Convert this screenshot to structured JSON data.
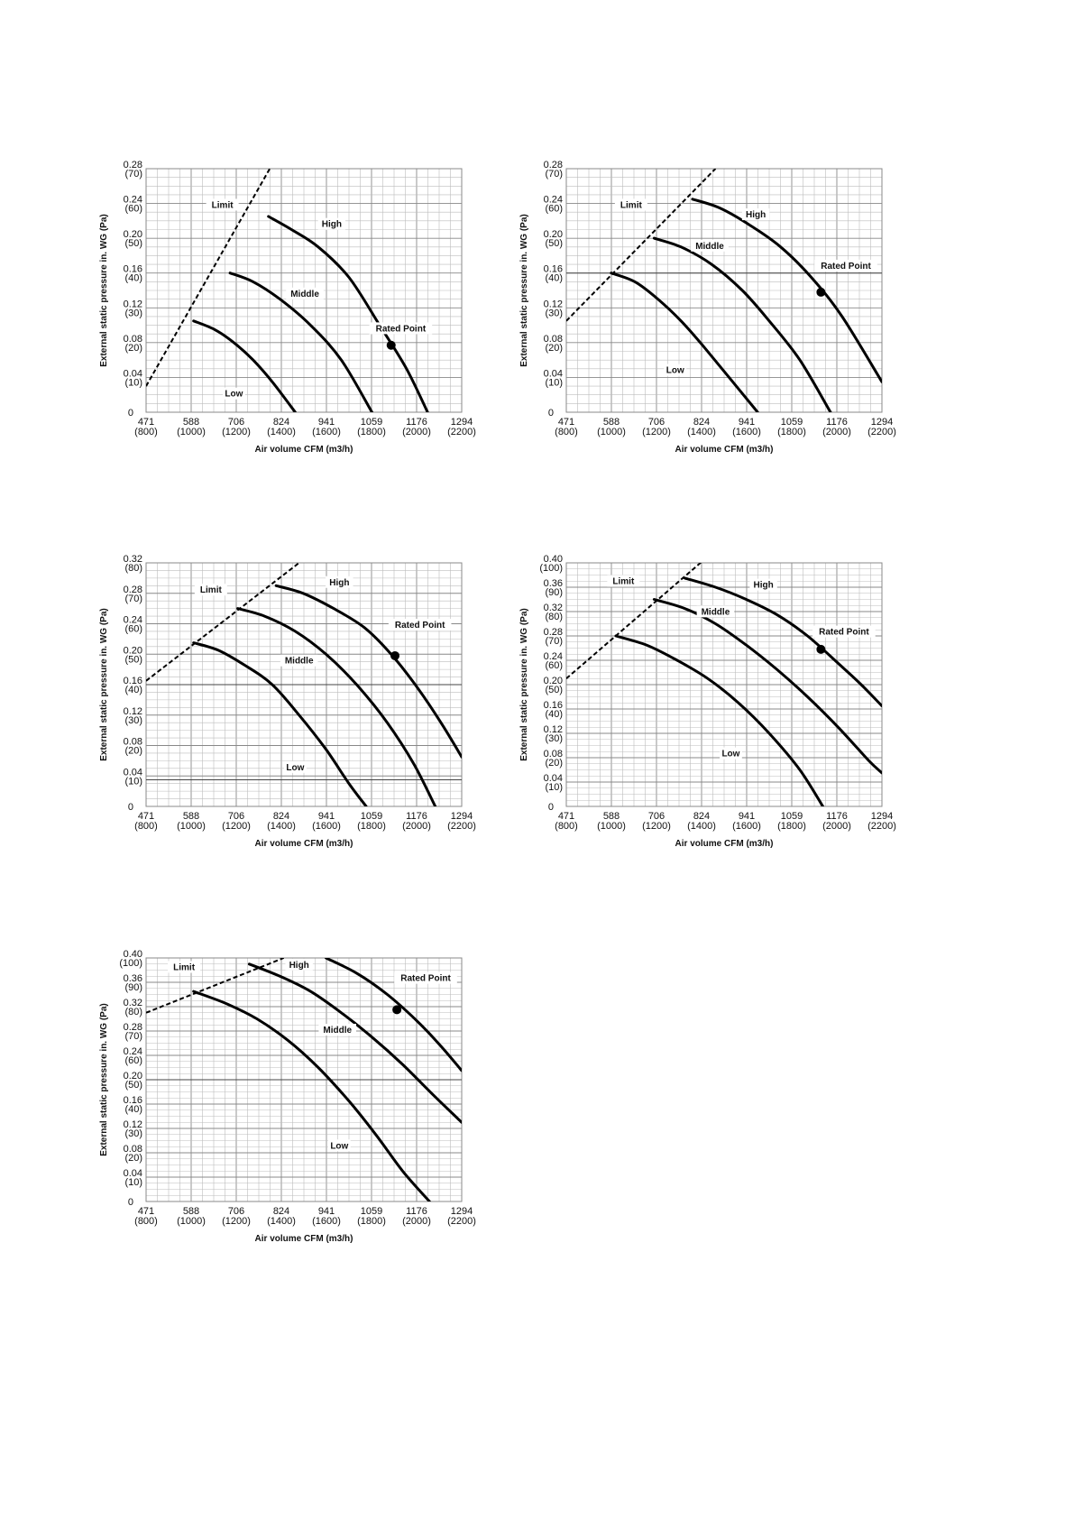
{
  "chart_data": [
    {
      "type": "line",
      "xlabel": "Air volume CFM (m3/h)",
      "ylabel": "External static pressure in. WG (Pa)",
      "xlim": [
        471,
        1294
      ],
      "ylim": [
        0,
        0.28
      ],
      "x_ticks": [
        "471",
        "588",
        "706",
        "824",
        "941",
        "1059",
        "1176",
        "1294"
      ],
      "x_ticks_sub": [
        "(800)",
        "(1000)",
        "(1200)",
        "(1400)",
        "(1600)",
        "(1800)",
        "(2000)",
        "(2200)"
      ],
      "y_ticks": [
        "0",
        "0.04",
        "0.08",
        "0.12",
        "0.16",
        "0.20",
        "0.24",
        "0.28"
      ],
      "y_ticks_sub": [
        "",
        "(10)",
        "(20)",
        "(30)",
        "(40)",
        "(50)",
        "(60)",
        "(70)"
      ],
      "series": [
        {
          "name": "Low",
          "kind": "curve",
          "x": [
            595,
            650,
            700,
            750,
            800,
            860
          ],
          "y": [
            0.105,
            0.095,
            0.08,
            0.06,
            0.035,
            0.0
          ]
        },
        {
          "name": "Middle",
          "kind": "curve",
          "x": [
            690,
            750,
            820,
            900,
            980,
            1060
          ],
          "y": [
            0.16,
            0.15,
            0.13,
            0.1,
            0.06,
            0.0
          ]
        },
        {
          "name": "High",
          "kind": "curve",
          "x": [
            790,
            850,
            920,
            1000,
            1080,
            1150,
            1205
          ],
          "y": [
            0.225,
            0.21,
            0.19,
            0.155,
            0.1,
            0.05,
            0.0
          ]
        },
        {
          "name": "Limit",
          "kind": "dashed",
          "x": [
            471,
            800
          ],
          "y": [
            0.03,
            0.285
          ]
        }
      ],
      "labels": [
        {
          "text": "Limit",
          "x": 670,
          "y": 0.237
        },
        {
          "text": "High",
          "x": 955,
          "y": 0.215
        },
        {
          "text": "Middle",
          "x": 885,
          "y": 0.135
        },
        {
          "text": "Rated Point",
          "x": 1135,
          "y": 0.095
        },
        {
          "text": "Low",
          "x": 700,
          "y": 0.02
        }
      ],
      "rated_point": {
        "x": 1110,
        "y": 0.077
      }
    },
    {
      "type": "line",
      "xlabel": "Air volume CFM (m3/h)",
      "ylabel": "External static pressure in. WG (Pa)",
      "xlim": [
        471,
        1294
      ],
      "ylim": [
        0,
        0.28
      ],
      "x_ticks": [
        "471",
        "588",
        "706",
        "824",
        "941",
        "1059",
        "1176",
        "1294"
      ],
      "x_ticks_sub": [
        "(800)",
        "(1000)",
        "(1200)",
        "(1400)",
        "(1600)",
        "(1800)",
        "(2000)",
        "(2200)"
      ],
      "y_ticks": [
        "0",
        "0.04",
        "0.08",
        "0.12",
        "0.16",
        "0.20",
        "0.24",
        "0.28"
      ],
      "y_ticks_sub": [
        "",
        "(10)",
        "(20)",
        "(30)",
        "(40)",
        "(50)",
        "(60)",
        "(70)"
      ],
      "series": [
        {
          "name": "Low",
          "kind": "curve",
          "x": [
            588,
            650,
            710,
            770,
            830,
            970
          ],
          "y": [
            0.16,
            0.15,
            0.13,
            0.105,
            0.075,
            0.0
          ]
        },
        {
          "name": "Middle",
          "kind": "curve",
          "x": [
            700,
            770,
            850,
            930,
            1000,
            1080,
            1160
          ],
          "y": [
            0.2,
            0.19,
            0.17,
            0.14,
            0.105,
            0.06,
            0.0
          ]
        },
        {
          "name": "High",
          "kind": "curve",
          "x": [
            800,
            870,
            950,
            1030,
            1110,
            1190,
            1294
          ],
          "y": [
            0.245,
            0.235,
            0.215,
            0.19,
            0.155,
            0.11,
            0.035
          ]
        },
        {
          "name": "Limit",
          "kind": "dashed",
          "x": [
            471,
            860
          ],
          "y": [
            0.105,
            0.28
          ]
        }
      ],
      "hlines": [
        0.16
      ],
      "labels": [
        {
          "text": "Limit",
          "x": 640,
          "y": 0.237
        },
        {
          "text": "High",
          "x": 965,
          "y": 0.226
        },
        {
          "text": "Middle",
          "x": 845,
          "y": 0.19
        },
        {
          "text": "Rated Point",
          "x": 1200,
          "y": 0.167
        },
        {
          "text": "Low",
          "x": 755,
          "y": 0.047
        }
      ],
      "rated_point": {
        "x": 1135,
        "y": 0.138
      }
    },
    {
      "type": "line",
      "xlabel": "Air volume CFM (m3/h)",
      "ylabel": "External static pressure in. WG (Pa)",
      "xlim": [
        471,
        1294
      ],
      "ylim": [
        0,
        0.32
      ],
      "x_ticks": [
        "471",
        "588",
        "706",
        "824",
        "941",
        "1059",
        "1176",
        "1294"
      ],
      "x_ticks_sub": [
        "(800)",
        "(1000)",
        "(1200)",
        "(1400)",
        "(1600)",
        "(1800)",
        "(2000)",
        "(2200)"
      ],
      "y_ticks": [
        "0",
        "0.04",
        "0.08",
        "0.12",
        "0.16",
        "0.20",
        "0.24",
        "0.28",
        "0.32"
      ],
      "y_ticks_sub": [
        "",
        "(10)",
        "(20)",
        "(30)",
        "(40)",
        "(50)",
        "(60)",
        "(70)",
        "(80)"
      ],
      "series": [
        {
          "name": "Low",
          "kind": "curve",
          "x": [
            595,
            660,
            730,
            800,
            870,
            940,
            1000,
            1045
          ],
          "y": [
            0.215,
            0.205,
            0.185,
            0.16,
            0.12,
            0.075,
            0.03,
            0.0
          ]
        },
        {
          "name": "Middle",
          "kind": "curve",
          "x": [
            710,
            780,
            860,
            940,
            1020,
            1100,
            1170,
            1225
          ],
          "y": [
            0.26,
            0.25,
            0.23,
            0.2,
            0.16,
            0.11,
            0.055,
            0.0
          ]
        },
        {
          "name": "High",
          "kind": "curve",
          "x": [
            810,
            880,
            960,
            1040,
            1110,
            1180,
            1240,
            1294
          ],
          "y": [
            0.29,
            0.28,
            0.26,
            0.235,
            0.2,
            0.155,
            0.11,
            0.065
          ]
        },
        {
          "name": "Limit",
          "kind": "dashed",
          "x": [
            471,
            870
          ],
          "y": [
            0.165,
            0.32
          ]
        }
      ],
      "hlines": [
        0.035,
        0.16
      ],
      "labels": [
        {
          "text": "Limit",
          "x": 640,
          "y": 0.283
        },
        {
          "text": "High",
          "x": 975,
          "y": 0.293
        },
        {
          "text": "Rated Point",
          "x": 1185,
          "y": 0.237
        },
        {
          "text": "Middle",
          "x": 870,
          "y": 0.19
        },
        {
          "text": "Low",
          "x": 860,
          "y": 0.05
        }
      ],
      "rated_point": {
        "x": 1120,
        "y": 0.198
      }
    },
    {
      "type": "line",
      "xlabel": "Air volume CFM (m3/h)",
      "ylabel": "External static pressure in. WG (Pa)",
      "xlim": [
        471,
        1294
      ],
      "ylim": [
        0,
        0.4
      ],
      "x_ticks": [
        "471",
        "588",
        "706",
        "824",
        "941",
        "1059",
        "1176",
        "1294"
      ],
      "x_ticks_sub": [
        "(800)",
        "(1000)",
        "(1200)",
        "(1400)",
        "(1600)",
        "(1800)",
        "(2000)",
        "(2200)"
      ],
      "y_ticks": [
        "0",
        "0.04",
        "0.08",
        "0.12",
        "0.16",
        "0.20",
        "0.24",
        "0.28",
        "0.32",
        "0.36",
        "0.40"
      ],
      "y_ticks_sub": [
        "",
        "(10)",
        "(20)",
        "(30)",
        "(40)",
        "(50)",
        "(60)",
        "(70)",
        "(80)",
        "(90)",
        "(100)"
      ],
      "series": [
        {
          "name": "Low",
          "kind": "curve",
          "x": [
            600,
            680,
            760,
            840,
            920,
            1000,
            1080,
            1140
          ],
          "y": [
            0.28,
            0.265,
            0.24,
            0.21,
            0.17,
            0.12,
            0.06,
            0.0
          ]
        },
        {
          "name": "Middle",
          "kind": "curve",
          "x": [
            700,
            780,
            860,
            940,
            1020,
            1100,
            1180,
            1260,
            1294
          ],
          "y": [
            0.34,
            0.325,
            0.3,
            0.265,
            0.225,
            0.18,
            0.13,
            0.075,
            0.055
          ]
        },
        {
          "name": "High",
          "kind": "curve",
          "x": [
            780,
            860,
            940,
            1020,
            1100,
            1180,
            1240,
            1294
          ],
          "y": [
            0.375,
            0.36,
            0.34,
            0.315,
            0.28,
            0.235,
            0.2,
            0.165
          ]
        },
        {
          "name": "Limit",
          "kind": "dashed",
          "x": [
            471,
            830
          ],
          "y": [
            0.21,
            0.405
          ]
        }
      ],
      "labels": [
        {
          "text": "Limit",
          "x": 620,
          "y": 0.368
        },
        {
          "text": "High",
          "x": 985,
          "y": 0.362
        },
        {
          "text": "Middle",
          "x": 860,
          "y": 0.318
        },
        {
          "text": "Rated Point",
          "x": 1195,
          "y": 0.285
        },
        {
          "text": "Low",
          "x": 900,
          "y": 0.085
        }
      ],
      "rated_point": {
        "x": 1135,
        "y": 0.258
      }
    },
    {
      "type": "line",
      "xlabel": "Air volume CFM (m3/h)",
      "ylabel": "External static pressure in. WG (Pa)",
      "xlim": [
        471,
        1294
      ],
      "ylim": [
        0,
        0.4
      ],
      "x_ticks": [
        "471",
        "588",
        "706",
        "824",
        "941",
        "1059",
        "1176",
        "1294"
      ],
      "x_ticks_sub": [
        "(800)",
        "(1000)",
        "(1200)",
        "(1400)",
        "(1600)",
        "(1800)",
        "(2000)",
        "(2200)"
      ],
      "y_ticks": [
        "0",
        "0.04",
        "0.08",
        "0.12",
        "0.16",
        "0.20",
        "0.24",
        "0.28",
        "0.32",
        "0.36",
        "0.40"
      ],
      "y_ticks_sub": [
        "",
        "(10)",
        "(20)",
        "(30)",
        "(40)",
        "(50)",
        "(60)",
        "(70)",
        "(80)",
        "(90)",
        "(100)"
      ],
      "series": [
        {
          "name": "Low",
          "kind": "curve",
          "x": [
            595,
            680,
            760,
            840,
            920,
            1000,
            1070,
            1140,
            1210
          ],
          "y": [
            0.345,
            0.325,
            0.3,
            0.265,
            0.22,
            0.165,
            0.11,
            0.05,
            0.0
          ]
        },
        {
          "name": "Middle",
          "kind": "curve",
          "x": [
            740,
            820,
            900,
            980,
            1060,
            1140,
            1220,
            1294
          ],
          "y": [
            0.39,
            0.37,
            0.345,
            0.31,
            0.27,
            0.225,
            0.175,
            0.13
          ]
        },
        {
          "name": "High",
          "kind": "curve",
          "x": [
            940,
            1020,
            1100,
            1180,
            1240,
            1294
          ],
          "y": [
            0.4,
            0.375,
            0.34,
            0.295,
            0.255,
            0.215
          ]
        },
        {
          "name": "Limit",
          "kind": "dashed",
          "x": [
            471,
            830
          ],
          "y": [
            0.31,
            0.4
          ]
        }
      ],
      "hlines": [
        0.2
      ],
      "labels": [
        {
          "text": "Limit",
          "x": 570,
          "y": 0.383
        },
        {
          "text": "High",
          "x": 870,
          "y": 0.387
        },
        {
          "text": "Rated Point",
          "x": 1200,
          "y": 0.365
        },
        {
          "text": "Middle",
          "x": 970,
          "y": 0.28
        },
        {
          "text": "Low",
          "x": 975,
          "y": 0.09
        }
      ],
      "rated_point": {
        "x": 1125,
        "y": 0.315
      }
    }
  ]
}
